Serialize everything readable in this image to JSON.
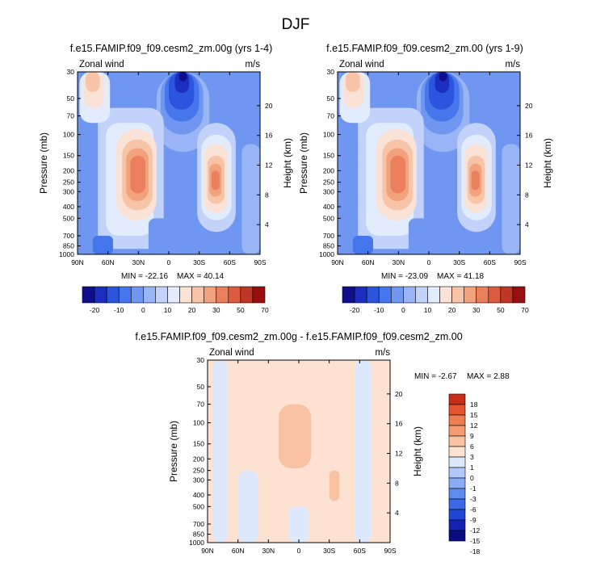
{
  "page": {
    "main_title": "DJF"
  },
  "scale_full": {
    "colors": [
      "#0f0f8c",
      "#1c2ec0",
      "#2b55de",
      "#4676eb",
      "#6f97f1",
      "#9ab5f5",
      "#c2d2fa",
      "#e2ecfd",
      "#fbe2d7",
      "#f8c4a8",
      "#f3a27e",
      "#ec7f5c",
      "#dc5a3e",
      "#bf3624",
      "#990e0e"
    ],
    "labels": [
      "-20",
      "-10",
      "0",
      "10",
      "20",
      "30",
      "50",
      "70"
    ],
    "label_slots": [
      1,
      3,
      5,
      7,
      9,
      11,
      13,
      15
    ]
  },
  "scale_diff": {
    "colors": [
      "#0a0a82",
      "#1422b4",
      "#2146d6",
      "#3a68e6",
      "#5e8bef",
      "#88abf4",
      "#b1c8f8",
      "#dde8fc",
      "#fde2d2",
      "#f9c2a2",
      "#f49c74",
      "#ee7d50",
      "#e45430",
      "#c92d17"
    ],
    "labels": [
      "-18",
      "-15",
      "-12",
      "-9",
      "-6",
      "-3",
      "-1",
      "0",
      "1",
      "3",
      "6",
      "9",
      "12",
      "15",
      "18"
    ]
  },
  "chart_data": [
    {
      "type": "heatmap",
      "title": "f.e15.FAMIP.f09_f09.cesm2_zm.00g (yrs 1-4)",
      "left_label": "Zonal wind",
      "right_label": "m/s",
      "ylabel": "Pressure (mb)",
      "y2label": "Height (km)",
      "x_ticks": [
        "90N",
        "60N",
        "30N",
        "0",
        "30S",
        "60S",
        "90S"
      ],
      "x_values": [
        90,
        60,
        30,
        0,
        -30,
        -60,
        -90
      ],
      "y_ticks": [
        "30",
        "50",
        "70",
        "100",
        "150",
        "200",
        "250",
        "300",
        "400",
        "500",
        "700",
        "850",
        "1000"
      ],
      "y_values": [
        30,
        50,
        70,
        100,
        150,
        200,
        250,
        300,
        400,
        500,
        700,
        850,
        1000
      ],
      "y2_ticks": [
        "4",
        "8",
        "12",
        "16",
        "20"
      ],
      "y2_values": [
        4,
        8,
        12,
        16,
        20
      ],
      "ylim": [
        1000,
        30
      ],
      "xlim": [
        90,
        -90
      ],
      "y_scale": "log",
      "min": -22.16,
      "max": 40.14,
      "min_label": "MIN = -22.16",
      "max_label": "MAX = 40.14",
      "colorbar_orientation": "horizontal",
      "features": [
        {
          "lat": 30,
          "p": 200,
          "value": 36
        },
        {
          "lat": -45,
          "p": 230,
          "value": 30
        },
        {
          "lat": 80,
          "p": 35,
          "value": 12
        },
        {
          "lat": -25,
          "p": 35,
          "value": -22
        }
      ]
    },
    {
      "type": "heatmap",
      "title": "f.e15.FAMIP.f09_f09.cesm2_zm.00 (yrs 1-9)",
      "left_label": "Zonal wind",
      "right_label": "m/s",
      "ylabel": "Pressure (mb)",
      "y2label": "Height (km)",
      "x_ticks": [
        "90N",
        "60N",
        "30N",
        "0",
        "30S",
        "60S",
        "90S"
      ],
      "x_values": [
        90,
        60,
        30,
        0,
        -30,
        -60,
        -90
      ],
      "y_ticks": [
        "30",
        "50",
        "70",
        "100",
        "150",
        "200",
        "250",
        "300",
        "400",
        "500",
        "700",
        "850",
        "1000"
      ],
      "y_values": [
        30,
        50,
        70,
        100,
        150,
        200,
        250,
        300,
        400,
        500,
        700,
        850,
        1000
      ],
      "y2_ticks": [
        "4",
        "8",
        "12",
        "16",
        "20"
      ],
      "y2_values": [
        4,
        8,
        12,
        16,
        20
      ],
      "ylim": [
        1000,
        30
      ],
      "xlim": [
        90,
        -90
      ],
      "y_scale": "log",
      "min": -23.09,
      "max": 41.18,
      "min_label": "MIN = -23.09",
      "max_label": "MAX = 41.18",
      "colorbar_orientation": "horizontal",
      "features": [
        {
          "lat": 30,
          "p": 200,
          "value": 38
        },
        {
          "lat": -45,
          "p": 230,
          "value": 31
        },
        {
          "lat": 80,
          "p": 35,
          "value": 12
        },
        {
          "lat": -25,
          "p": 35,
          "value": -23
        }
      ]
    },
    {
      "type": "heatmap",
      "title": "f.e15.FAMIP.f09_f09.cesm2_zm.00g - f.e15.FAMIP.f09_f09.cesm2_zm.00",
      "left_label": "Zonal wind",
      "right_label": "m/s",
      "ylabel": "Pressure (mb)",
      "y2label": "Height (km)",
      "x_ticks": [
        "90N",
        "60N",
        "30N",
        "0",
        "30S",
        "60S",
        "90S"
      ],
      "x_values": [
        90,
        60,
        30,
        0,
        -30,
        -60,
        -90
      ],
      "y_ticks": [
        "30",
        "50",
        "70",
        "100",
        "150",
        "200",
        "250",
        "300",
        "400",
        "500",
        "700",
        "850",
        "1000"
      ],
      "y_values": [
        30,
        50,
        70,
        100,
        150,
        200,
        250,
        300,
        400,
        500,
        700,
        850,
        1000
      ],
      "y2_ticks": [
        "4",
        "8",
        "12",
        "16",
        "20"
      ],
      "y2_values": [
        4,
        8,
        12,
        16,
        20
      ],
      "ylim": [
        1000,
        30
      ],
      "xlim": [
        90,
        -90
      ],
      "y_scale": "log",
      "min": -2.67,
      "max": 2.88,
      "min_label": "MIN = -2.67",
      "max_label": "MAX = 2.88",
      "colorbar_orientation": "vertical",
      "features": [
        {
          "lat": 5,
          "p": 100,
          "value": 2.8
        },
        {
          "lat": -25,
          "p": 350,
          "value": 2.0
        },
        {
          "lat": 78,
          "p": 200,
          "value": -1.8
        },
        {
          "lat": -63,
          "p": 200,
          "value": -1.5
        },
        {
          "lat": 45,
          "p": 300,
          "value": -0.8
        }
      ]
    }
  ]
}
